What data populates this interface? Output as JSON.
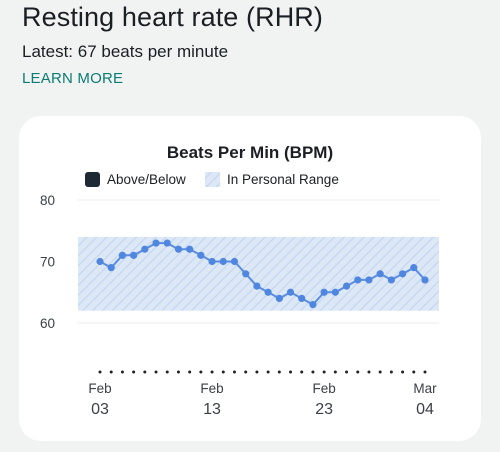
{
  "header": {
    "title": "Resting heart rate (RHR)",
    "latest": "Latest: 67 beats per minute",
    "learn_more": "LEARN MORE"
  },
  "colors": {
    "accent": "#0b7c73",
    "line": "#5b8de0",
    "point": "#4f86df",
    "range_fill": "#dde8f7",
    "range_hatch": "#c5d6ef",
    "above_below_swatch": "#1e2a33"
  },
  "legend": {
    "above_below": "Above/Below",
    "in_range": "In Personal Range"
  },
  "chart_data": {
    "type": "line",
    "title": "Beats Per Min (BPM)",
    "xlabel": "",
    "ylabel": "",
    "ylim": [
      55,
      80
    ],
    "y_ticks": [
      80,
      70,
      60
    ],
    "personal_range": [
      62,
      74
    ],
    "grid": true,
    "legend_position": "top",
    "x_ticks": [
      {
        "month": "Feb",
        "day": "03",
        "index": 0
      },
      {
        "month": "Feb",
        "day": "13",
        "index": 10
      },
      {
        "month": "Feb",
        "day": "23",
        "index": 20
      },
      {
        "month": "Mar",
        "day": "04",
        "index": 29
      }
    ],
    "series": [
      {
        "values": [
          70,
          69,
          71,
          71,
          72,
          73,
          73,
          72,
          72,
          71,
          70,
          70,
          70,
          68,
          66,
          65,
          64,
          65,
          64,
          63,
          65,
          65,
          66,
          67,
          67,
          68,
          67,
          68,
          69,
          67
        ]
      }
    ]
  }
}
